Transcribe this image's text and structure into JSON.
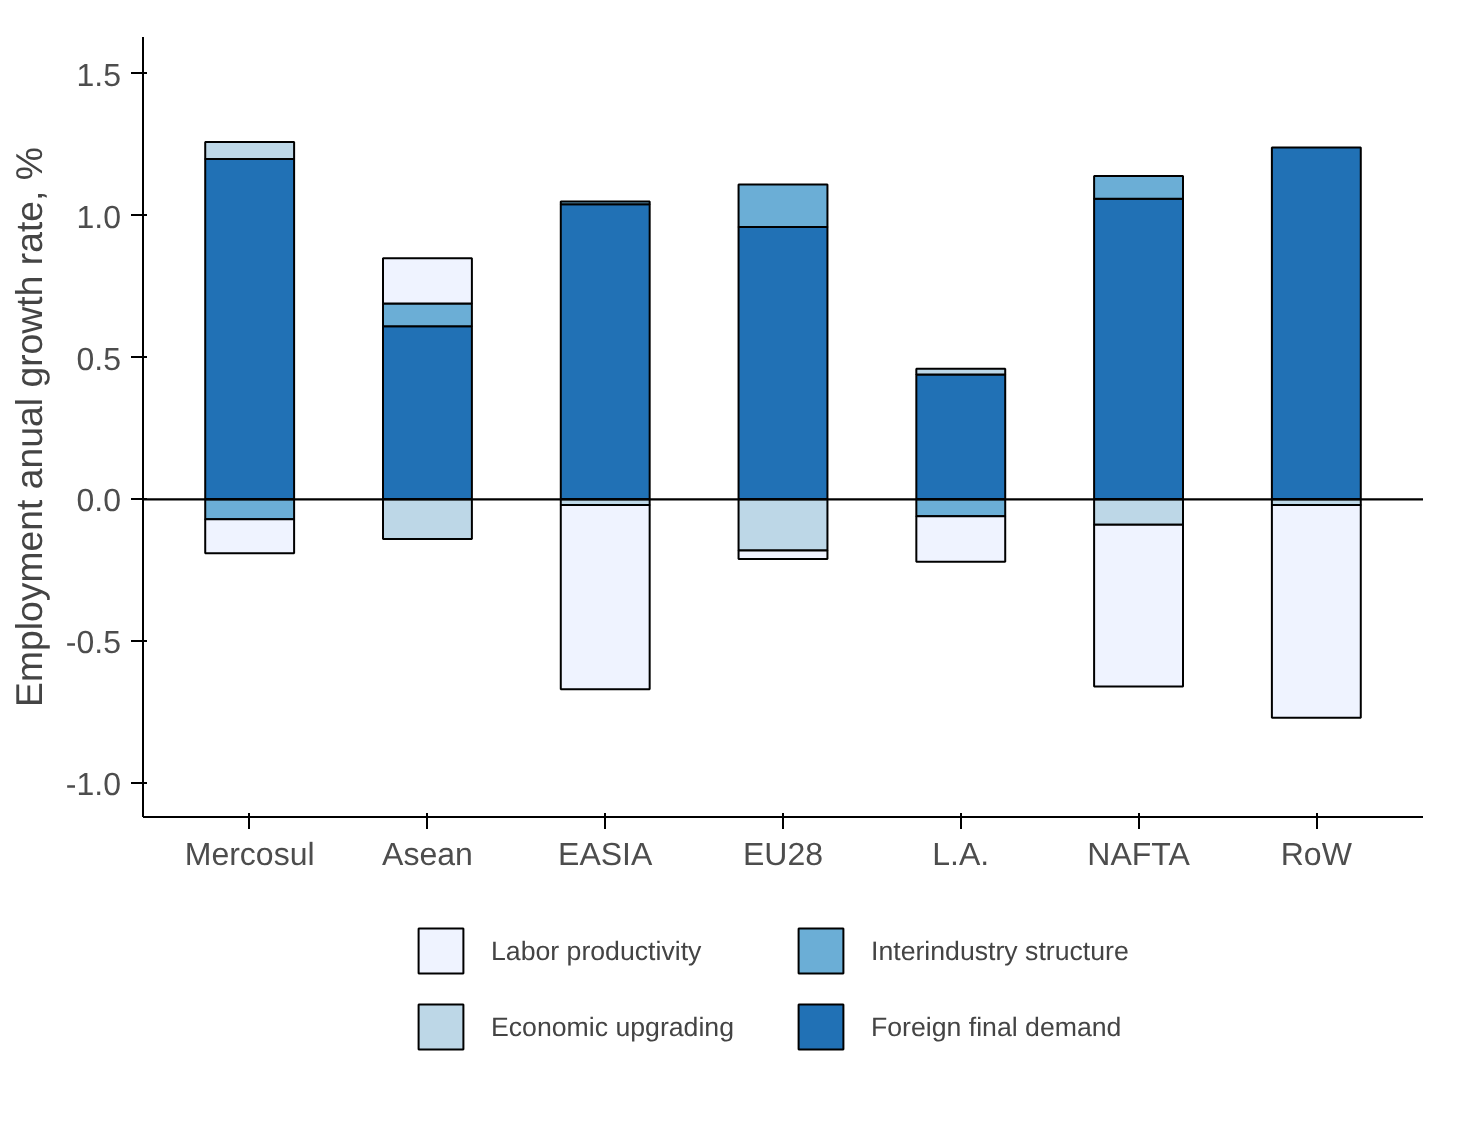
{
  "chart_data": {
    "type": "bar",
    "stacked": true,
    "ylabel": "Employment anual growth rate, %",
    "categories": [
      "Mercosul",
      "Asean",
      "EASIA",
      "EU28",
      "L.A.",
      "NAFTA",
      "RoW"
    ],
    "series": [
      {
        "name": "Foreign final demand",
        "color": "#2171b5",
        "values": [
          1.2,
          0.61,
          1.04,
          0.96,
          0.44,
          1.06,
          1.24
        ]
      },
      {
        "name": "Interindustry structure",
        "color": "#6baed6",
        "values": [
          -0.07,
          0.08,
          0.01,
          0.15,
          -0.06,
          0.08,
          null
        ]
      },
      {
        "name": "Economic upgrading",
        "color": "#bdd7e7",
        "values": [
          0.06,
          -0.14,
          -0.02,
          -0.18,
          0.02,
          -0.09,
          -0.02
        ]
      },
      {
        "name": "Labor productivity",
        "color": "#eff3ff",
        "values": [
          -0.12,
          0.16,
          -0.65,
          -0.03,
          -0.16,
          -0.57,
          -0.75
        ]
      }
    ],
    "ylim": [
      -1.12,
      1.63
    ],
    "yticks": [
      {
        "value": -1,
        "label": "-1.0"
      },
      -0.5,
      {
        "value": 0,
        "label": "0.0"
      },
      0.5,
      {
        "value": 1,
        "label": "1.0"
      },
      1.5
    ],
    "ref_lines": [
      {
        "axis": "y",
        "value": 0,
        "color": "#000000"
      }
    ],
    "grid": false,
    "legend": "bottom"
  }
}
